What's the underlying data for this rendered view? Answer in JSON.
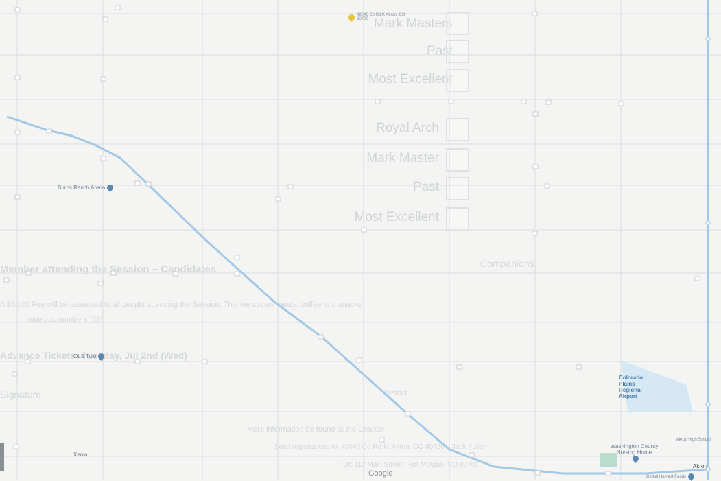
{
  "map": {
    "pois": [
      {
        "id": "burns-ranch-arena",
        "label": "Burns Ranch Arena",
        "pin": "blue"
      },
      {
        "id": "ols-tulo",
        "label": "OLS Tulo",
        "pin": "blue"
      },
      {
        "id": "washington-county-nursing-home",
        "label": "Washington County Nursing Home",
        "pin": "blue"
      },
      {
        "id": "akron-high-school",
        "label": "Akron High School",
        "pin": "blue"
      },
      {
        "id": "global-harvest-foods",
        "label": "Global Harvest Foods",
        "pin": "blue"
      },
      {
        "id": "address-marker",
        "label": "49040 Co Rd K Akron, CO 80720",
        "pin": "yellow"
      }
    ],
    "airport_label": "Colorado Plains Regional Airport",
    "towns": [
      "Akron",
      "Xenia"
    ],
    "attribution": "Google",
    "colors": {
      "road": "#a3c8e6",
      "airport": "#cde5f2",
      "grid": "#e2e5e7",
      "background": "#f4f5f3"
    }
  },
  "ghost": {
    "checklist_a": [
      "Mark Masters",
      "Past",
      "Most Excellent"
    ],
    "checklist_b": [
      "Royal Arch",
      "Mark Master",
      "Past",
      "Most Excellent"
    ],
    "heading": "Member attending the Session – Candidates",
    "heading_right": "Companions",
    "fee_line1": "A $80.00 Fee will be assessed to all people attending the Session. This fee covers meals, coffee and snacks",
    "fee_line2": "receipts, numbers “25”",
    "advance": "Advance Tickets: Tuesday, Jul 2nd (Wed)",
    "signature": "Signature",
    "district": "District",
    "info": "More information be found at the Chapter",
    "addr1": "Send registrations to: 49040 Co Rd K, Akron, CO 80720 – Jack Fuller",
    "addr2": "Or: 112 Main Street, Fort Morgan, CO 80701"
  }
}
